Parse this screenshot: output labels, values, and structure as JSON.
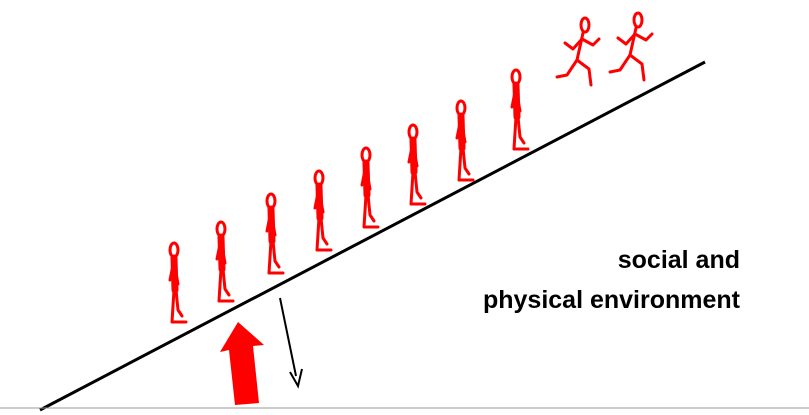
{
  "label": {
    "lines": [
      "social and",
      "physical environment"
    ]
  }
}
